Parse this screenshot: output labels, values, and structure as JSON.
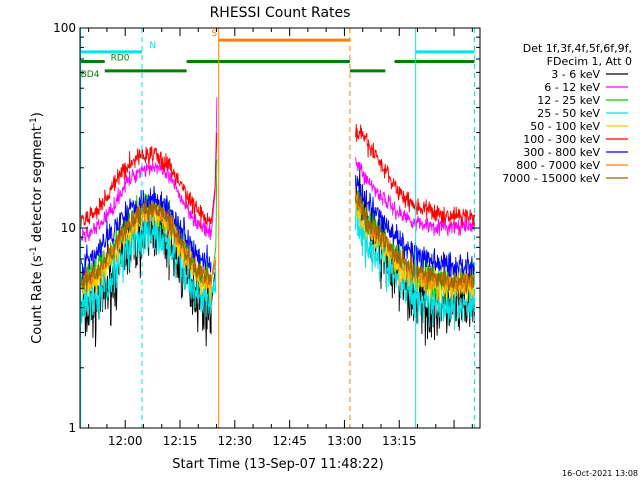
{
  "chart_data": {
    "type": "line",
    "title": "RHESSI Count Rates",
    "xlabel": "Start Time (13-Sep-07 11:48:22)",
    "ylabel_main": "Count Rate (s",
    "ylabel_sup1": "-1",
    "ylabel_mid": " detector segment",
    "ylabel_sup2": "-1",
    "ylabel_end": ")",
    "yscale": "log",
    "ylim": [
      1,
      100
    ],
    "xlim_minutes": [
      -12.37,
      97.1
    ],
    "y_ticks": [
      {
        "value": 1,
        "label": "1"
      },
      {
        "value": 10,
        "label": "10"
      },
      {
        "value": 100,
        "label": "100"
      }
    ],
    "x_ticks": [
      {
        "minute": 0,
        "label": "12:00"
      },
      {
        "minute": 15,
        "label": "12:15"
      },
      {
        "minute": 30,
        "label": "12:30"
      },
      {
        "minute": 45,
        "label": "12:45"
      },
      {
        "minute": 60,
        "label": "13:00"
      },
      {
        "minute": 75,
        "label": "13:15"
      }
    ],
    "legend": {
      "header": [
        "Det 1f,3f,4f,5f,6f,9f,",
        "FDecim 1, Att 0"
      ],
      "entries": [
        {
          "label": "3 - 6 keV",
          "color": "#000000"
        },
        {
          "label": "6 - 12 keV",
          "color": "#ff00ff"
        },
        {
          "label": "12 - 25 keV",
          "color": "#00cc00"
        },
        {
          "label": "25 - 50 keV",
          "color": "#00e5e5"
        },
        {
          "label": "50 - 100 keV",
          "color": "#ffcc00"
        },
        {
          "label": "100 - 300 keV",
          "color": "#ff0000"
        },
        {
          "label": "300 - 800 keV",
          "color": "#0000ff"
        },
        {
          "label": "800 - 7000 keV",
          "color": "#ff8000"
        },
        {
          "label": "7000 - 15000 keV",
          "color": "#996600"
        }
      ]
    },
    "flags": [
      {
        "label": "N",
        "color": "#00e5e5",
        "level": 76,
        "intervals": [
          [
            -12.2,
            4.6
          ],
          [
            79.5,
            95.6
          ]
        ]
      },
      {
        "label": "S",
        "color": "#ff8000",
        "level": 87,
        "intervals": [
          [
            25.6,
            61.5
          ]
        ]
      },
      {
        "label": "RD0",
        "color": "#008000",
        "level": 68,
        "intervals": [
          [
            -12.2,
            -5.6
          ],
          [
            16.8,
            61.5
          ],
          [
            73.7,
            95.6
          ]
        ]
      },
      {
        "label": "BD4",
        "color": "#008000",
        "level": 61,
        "intervals": [
          [
            -5.6,
            16.8
          ],
          [
            61.5,
            71.2
          ]
        ]
      }
    ],
    "vertical_markers": [
      {
        "minute": -12.2,
        "color": "#00e5e5",
        "style": "solid"
      },
      {
        "minute": 4.6,
        "color": "#00e5e5",
        "style": "dashed"
      },
      {
        "minute": 25.6,
        "color": "#ff8000",
        "style": "solid"
      },
      {
        "minute": 61.5,
        "color": "#ff8000",
        "style": "dashed"
      },
      {
        "minute": 79.5,
        "color": "#00e5e5",
        "style": "solid"
      },
      {
        "minute": 95.6,
        "color": "#00e5e5",
        "style": "dashed"
      }
    ],
    "series": [
      {
        "name": "3 - 6 keV",
        "color": "#000000",
        "noise": 0.12,
        "values": [
          [
            -12.2,
            3.7
          ],
          [
            -8,
            4.0
          ],
          [
            -4,
            5.3
          ],
          [
            0,
            7.6
          ],
          [
            4,
            9.0
          ],
          [
            8,
            9.9
          ],
          [
            12,
            8.5
          ],
          [
            16,
            6.0
          ],
          [
            20,
            4.6
          ],
          [
            23.5,
            4.0
          ],
          [
            24.5,
            6.0
          ],
          [
            63,
            15.2
          ],
          [
            66,
            10.5
          ],
          [
            70,
            7.8
          ],
          [
            75,
            5.2
          ],
          [
            80,
            4.2
          ],
          [
            85,
            4.0
          ],
          [
            90,
            4.0
          ],
          [
            95.6,
            4.1
          ]
        ]
      },
      {
        "name": "6 - 12 keV",
        "color": "#ff00ff",
        "noise": 0.03,
        "values": [
          [
            -12.2,
            9.0
          ],
          [
            -8,
            9.8
          ],
          [
            -4,
            12.2
          ],
          [
            0,
            16.5
          ],
          [
            4,
            19.5
          ],
          [
            8,
            20.5
          ],
          [
            12,
            18.0
          ],
          [
            16,
            13.5
          ],
          [
            20,
            10.4
          ],
          [
            23.5,
            9.2
          ],
          [
            24.6,
            15.0
          ],
          [
            25.1,
            45.0
          ],
          [
            63,
            22.0
          ],
          [
            66,
            17.5
          ],
          [
            70,
            14.5
          ],
          [
            75,
            11.8
          ],
          [
            80,
            10.6
          ],
          [
            85,
            10.2
          ],
          [
            90,
            10.1
          ],
          [
            95.6,
            10.1
          ]
        ]
      },
      {
        "name": "12 - 25 keV",
        "color": "#00cc00",
        "noise": 0.07,
        "values": [
          [
            -12.2,
            5.5
          ],
          [
            -8,
            6.0
          ],
          [
            -4,
            7.5
          ],
          [
            0,
            10.0
          ],
          [
            4,
            12.0
          ],
          [
            8,
            13.0
          ],
          [
            12,
            11.0
          ],
          [
            16,
            8.0
          ],
          [
            20,
            6.0
          ],
          [
            23.5,
            5.3
          ],
          [
            24.8,
            8.0
          ],
          [
            25.1,
            22.0
          ],
          [
            63,
            14.0
          ],
          [
            66,
            11.0
          ],
          [
            70,
            9.0
          ],
          [
            75,
            6.8
          ],
          [
            80,
            5.8
          ],
          [
            85,
            5.4
          ],
          [
            90,
            5.3
          ],
          [
            95.6,
            5.4
          ]
        ]
      },
      {
        "name": "25 - 50 keV",
        "color": "#00e5e5",
        "noise": 0.08,
        "values": [
          [
            -12.2,
            4.0
          ],
          [
            -8,
            4.3
          ],
          [
            -4,
            5.5
          ],
          [
            0,
            7.8
          ],
          [
            4,
            9.0
          ],
          [
            8,
            9.4
          ],
          [
            12,
            8.2
          ],
          [
            16,
            6.0
          ],
          [
            20,
            4.7
          ],
          [
            23.5,
            4.3
          ],
          [
            24.8,
            6.0
          ],
          [
            63,
            11.5
          ],
          [
            66,
            8.5
          ],
          [
            70,
            7.0
          ],
          [
            75,
            5.3
          ],
          [
            80,
            4.5
          ],
          [
            85,
            4.2
          ],
          [
            90,
            4.1
          ],
          [
            95.6,
            4.2
          ]
        ]
      },
      {
        "name": "50 - 100 keV",
        "color": "#ffcc00",
        "noise": 0.05,
        "values": [
          [
            -12.2,
            5.0
          ],
          [
            -8,
            5.4
          ],
          [
            -4,
            6.8
          ],
          [
            0,
            9.2
          ],
          [
            4,
            11.0
          ],
          [
            8,
            11.8
          ],
          [
            12,
            10.2
          ],
          [
            16,
            7.3
          ],
          [
            20,
            5.6
          ],
          [
            23.5,
            5.0
          ],
          [
            63,
            12.5
          ],
          [
            66,
            10.0
          ],
          [
            70,
            8.3
          ],
          [
            75,
            6.4
          ],
          [
            80,
            5.5
          ],
          [
            85,
            5.1
          ],
          [
            90,
            5.0
          ],
          [
            95.6,
            5.0
          ]
        ]
      },
      {
        "name": "100 - 300 keV",
        "color": "#ff0000",
        "noise": 0.035,
        "values": [
          [
            -12.2,
            10.5
          ],
          [
            -8,
            12.0
          ],
          [
            -4,
            15.5
          ],
          [
            0,
            20.0
          ],
          [
            4,
            23.0
          ],
          [
            8,
            23.5
          ],
          [
            12,
            20.5
          ],
          [
            16,
            15.5
          ],
          [
            20,
            12.0
          ],
          [
            23.5,
            10.5
          ],
          [
            24.6,
            16.0
          ],
          [
            25.1,
            30.0
          ],
          [
            63,
            31.0
          ],
          [
            66,
            27.0
          ],
          [
            70,
            21.0
          ],
          [
            75,
            15.0
          ],
          [
            80,
            12.8
          ],
          [
            85,
            11.8
          ],
          [
            90,
            11.5
          ],
          [
            95.6,
            11.5
          ]
        ]
      },
      {
        "name": "300 - 800 keV",
        "color": "#0000ff",
        "noise": 0.05,
        "values": [
          [
            -12.2,
            6.5
          ],
          [
            -8,
            7.2
          ],
          [
            -4,
            9.5
          ],
          [
            0,
            12.0
          ],
          [
            4,
            13.5
          ],
          [
            8,
            14.0
          ],
          [
            12,
            12.5
          ],
          [
            16,
            9.5
          ],
          [
            20,
            7.4
          ],
          [
            23.5,
            6.5
          ],
          [
            63,
            17.0
          ],
          [
            66,
            13.0
          ],
          [
            70,
            11.0
          ],
          [
            75,
            8.5
          ],
          [
            80,
            7.2
          ],
          [
            85,
            6.7
          ],
          [
            90,
            6.5
          ],
          [
            95.6,
            6.5
          ]
        ]
      },
      {
        "name": "800 - 7000 keV",
        "color": "#ff8000",
        "noise": 0.035,
        "values": [
          [
            -12.2,
            5.3
          ],
          [
            -8,
            5.8
          ],
          [
            -4,
            7.3
          ],
          [
            0,
            9.8
          ],
          [
            4,
            11.7
          ],
          [
            8,
            12.4
          ],
          [
            12,
            10.8
          ],
          [
            16,
            7.8
          ],
          [
            20,
            6.0
          ],
          [
            23.5,
            5.3
          ],
          [
            24.8,
            7.0
          ],
          [
            63,
            14.2
          ],
          [
            66,
            10.8
          ],
          [
            70,
            8.8
          ],
          [
            75,
            6.8
          ],
          [
            80,
            5.8
          ],
          [
            85,
            5.5
          ],
          [
            90,
            5.3
          ],
          [
            95.6,
            5.3
          ]
        ]
      },
      {
        "name": "7000 - 15000 keV",
        "color": "#996600",
        "noise": 0.04,
        "values": [
          [
            -12.2,
            5.4
          ],
          [
            -8,
            5.9
          ],
          [
            -4,
            7.4
          ],
          [
            0,
            9.9
          ],
          [
            4,
            11.8
          ],
          [
            8,
            12.5
          ],
          [
            12,
            10.9
          ],
          [
            16,
            7.9
          ],
          [
            20,
            6.1
          ],
          [
            23.5,
            5.4
          ],
          [
            63,
            14.5
          ],
          [
            66,
            11.0
          ],
          [
            70,
            9.0
          ],
          [
            75,
            7.0
          ],
          [
            80,
            6.0
          ],
          [
            85,
            5.6
          ],
          [
            90,
            5.4
          ],
          [
            95.6,
            5.4
          ]
        ]
      }
    ],
    "timestamp": "16-Oct-2021 13:08"
  }
}
